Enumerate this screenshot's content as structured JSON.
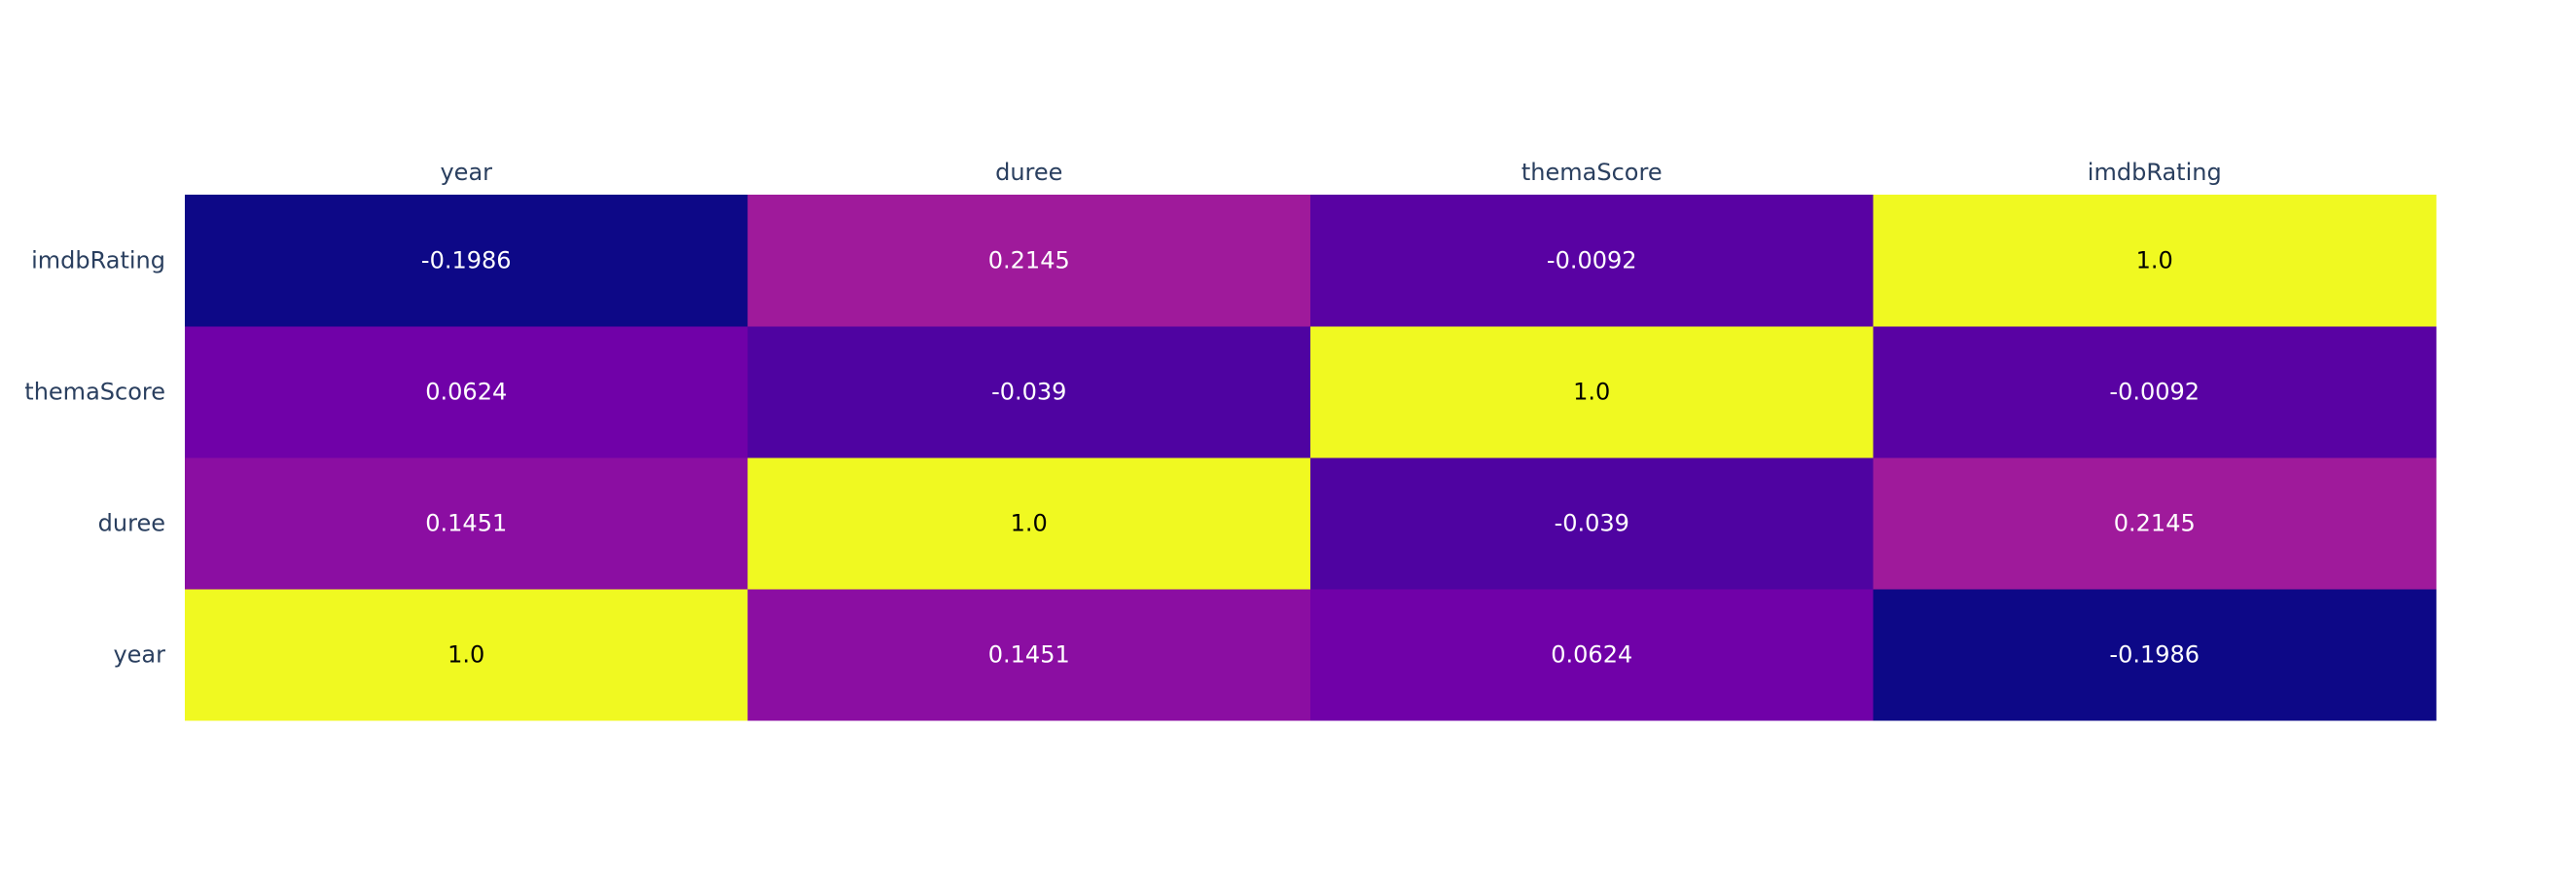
{
  "chart_data": {
    "type": "heatmap",
    "x_categories": [
      "year",
      "duree",
      "themaScore",
      "imdbRating"
    ],
    "y_categories": [
      "year",
      "duree",
      "themaScore",
      "imdbRating"
    ],
    "values": [
      [
        1.0,
        0.1451,
        0.0624,
        -0.1986
      ],
      [
        0.1451,
        1.0,
        -0.039,
        0.2145
      ],
      [
        0.0624,
        -0.039,
        1.0,
        -0.0092
      ],
      [
        -0.1986,
        0.2145,
        -0.0092,
        1.0
      ]
    ],
    "cell_labels": [
      [
        "1.0",
        "0.1451",
        "0.0624",
        "-0.1986"
      ],
      [
        "0.1451",
        "1.0",
        "-0.039",
        "0.2145"
      ],
      [
        "0.0624",
        "-0.039",
        "1.0",
        "-0.0092"
      ],
      [
        "-0.1986",
        "0.2145",
        "-0.0092",
        "1.0"
      ]
    ],
    "colorscale": "plasma",
    "zlim": [
      -0.1986,
      1.0
    ],
    "x_axis_side": "top",
    "y_axis_order": "bottom-to-top",
    "grid": false,
    "legend": "none",
    "title": "",
    "xlabel": "",
    "ylabel": "",
    "colors": {
      "axis_text": "#2a3f5f",
      "light_cell_text": "#000000",
      "dark_cell_text": "#ffffff",
      "background": "#ffffff"
    }
  }
}
